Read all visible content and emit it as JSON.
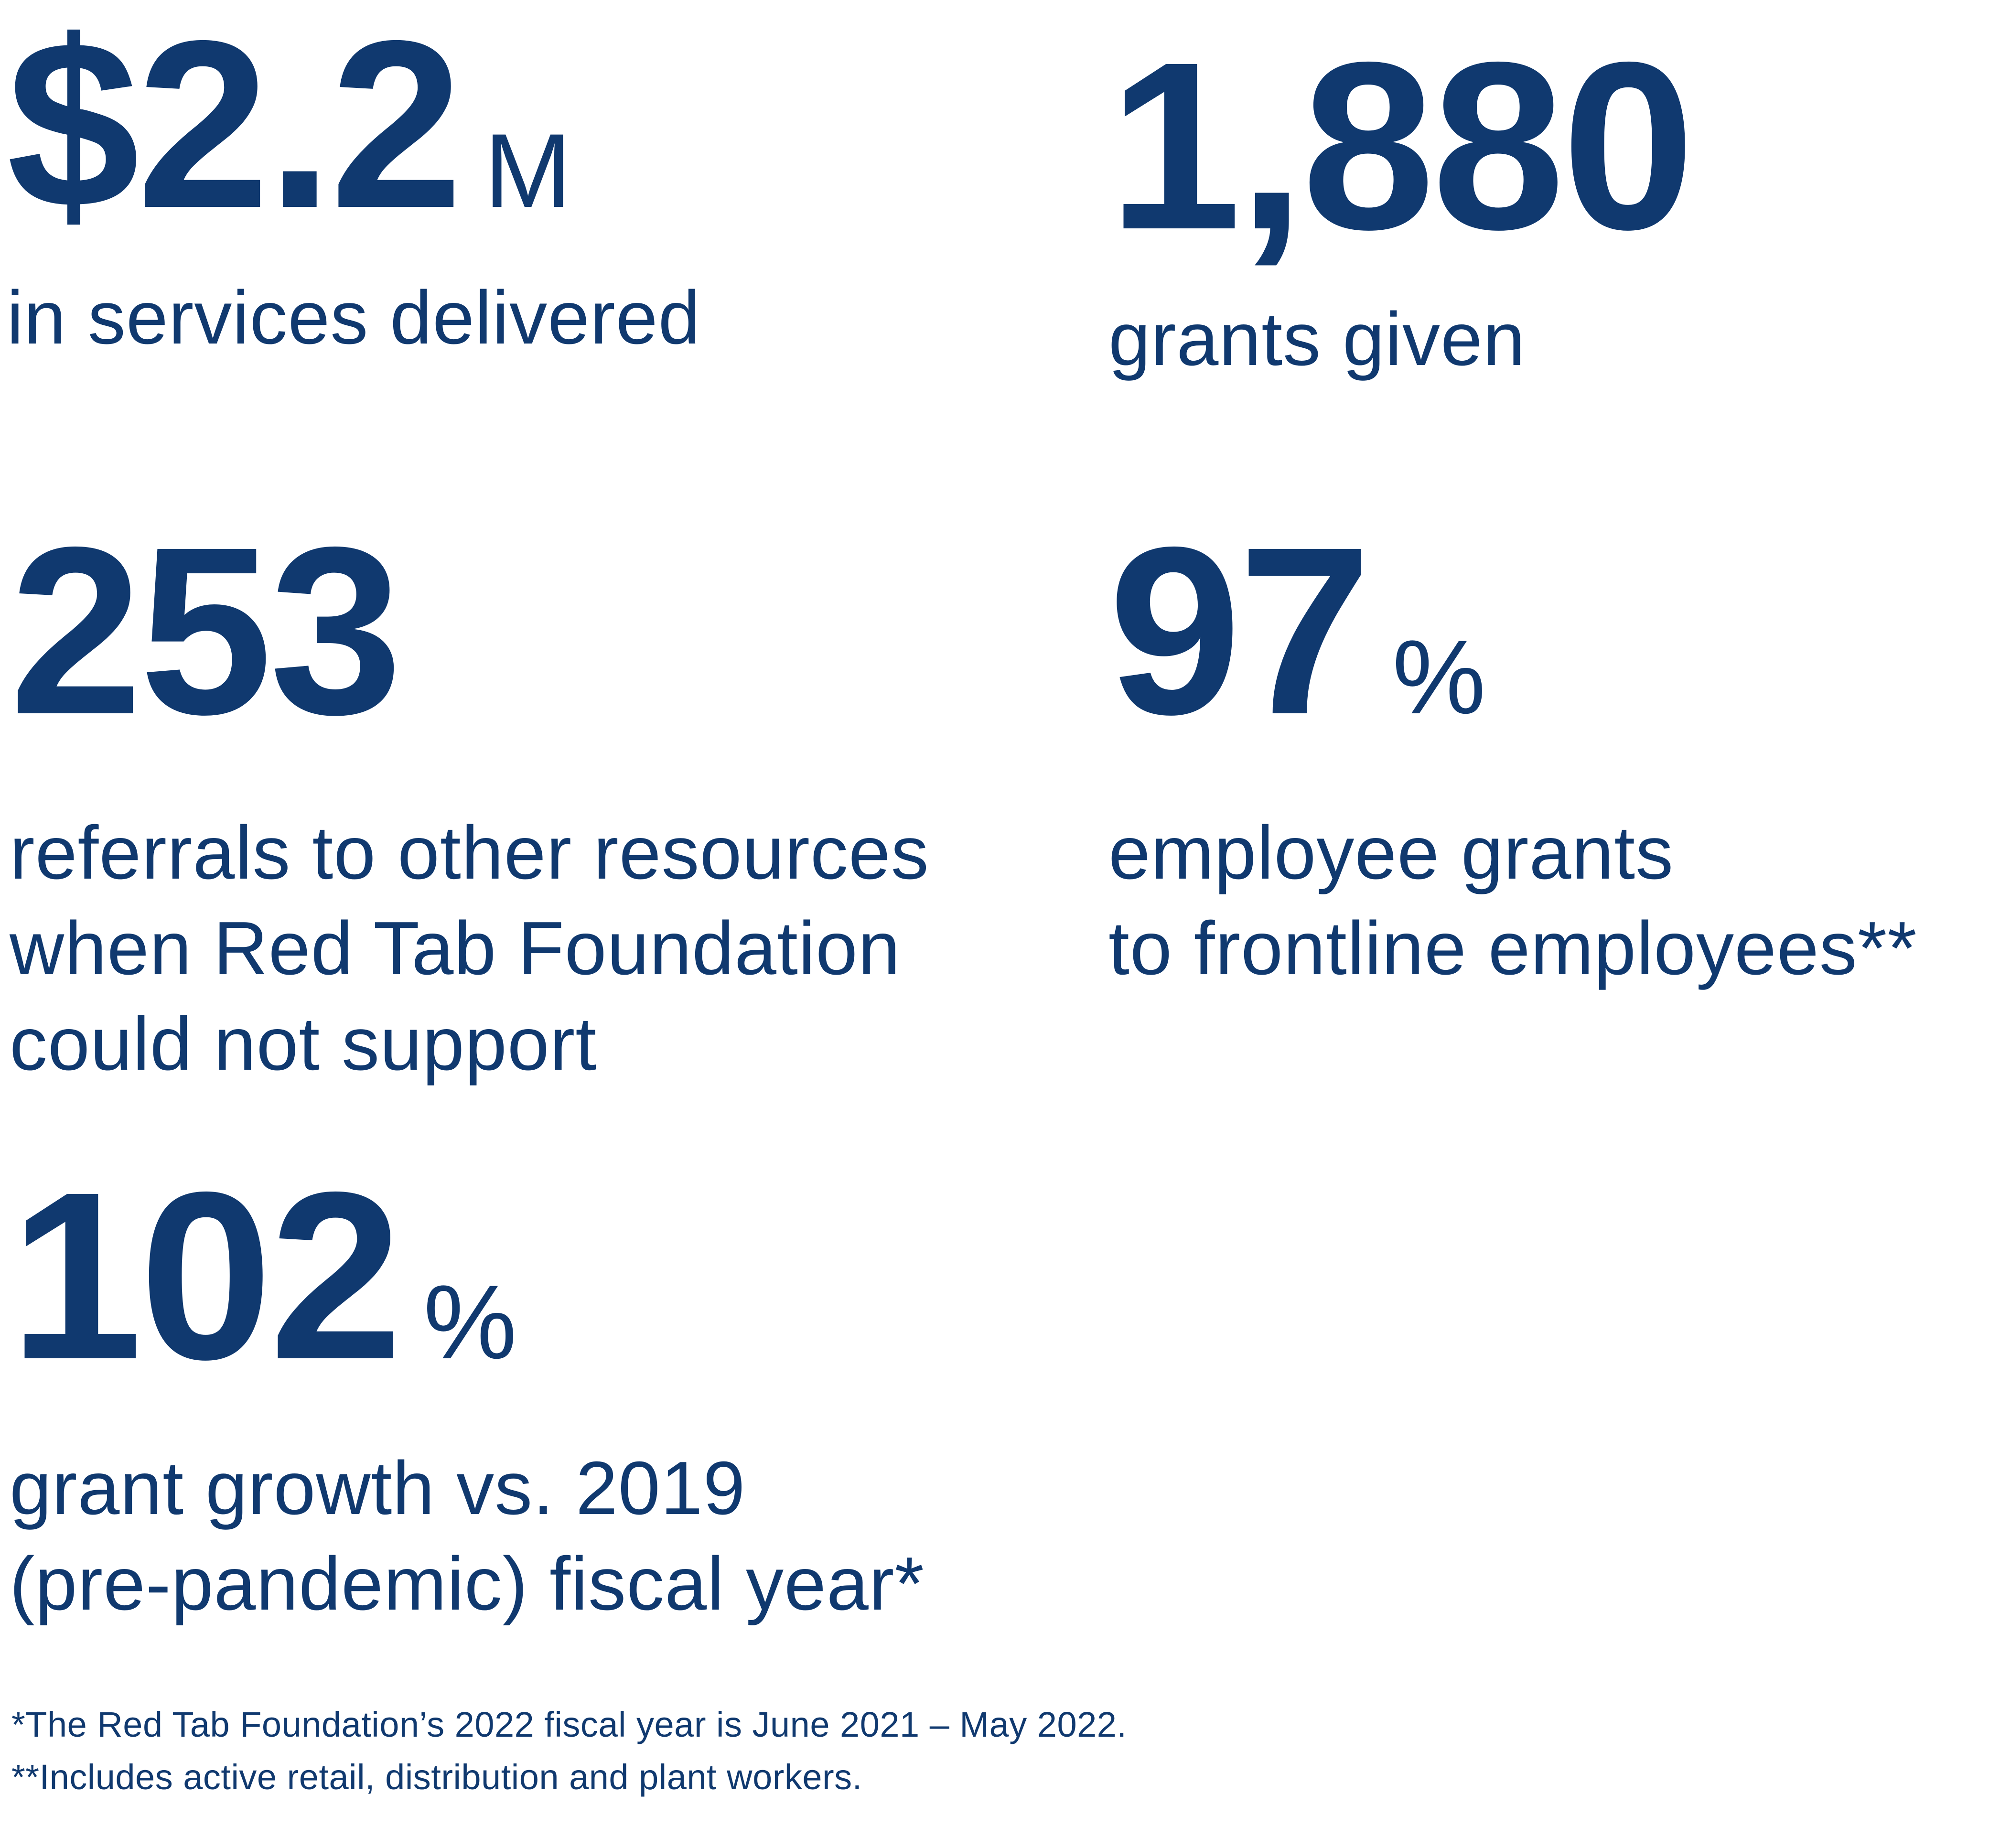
{
  "stats": [
    {
      "value": "$2.2",
      "suffix": "M",
      "description": "in services delivered"
    },
    {
      "value": "1,880",
      "suffix": "",
      "description": "grants given"
    },
    {
      "value": "253",
      "suffix": "",
      "description": "referrals to other resources\nwhen Red Tab Foundation\ncould not support"
    },
    {
      "value": "97",
      "suffix": "%",
      "description": "employee grants\nto frontline employees**"
    },
    {
      "value": "102",
      "suffix": "%",
      "description": "grant growth vs. 2019\n(pre-pandemic) fiscal year*"
    }
  ],
  "footnotes": [
    "*The Red Tab Foundation’s 2022 fiscal year is June 2021 – May 2022.",
    "**Includes active retail, distribution and plant workers."
  ],
  "colors": {
    "text": "#10396f",
    "background": "#ffffff"
  }
}
